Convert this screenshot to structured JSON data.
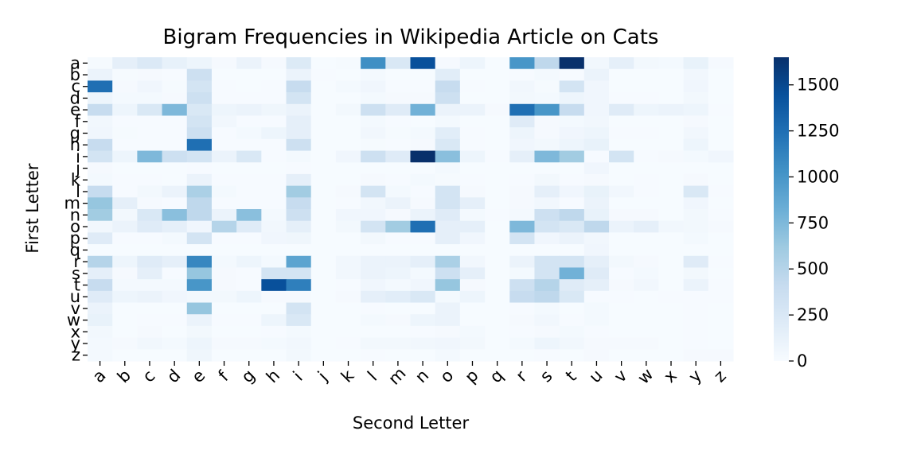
{
  "chart_data": {
    "type": "heatmap",
    "title": "Bigram Frequencies in Wikipedia Article on Cats",
    "xlabel": "Second Letter",
    "ylabel": "First Letter",
    "x_categories": [
      "a",
      "b",
      "c",
      "d",
      "e",
      "f",
      "g",
      "h",
      "i",
      "j",
      "k",
      "l",
      "m",
      "n",
      "o",
      "p",
      "q",
      "r",
      "s",
      "t",
      "u",
      "v",
      "w",
      "x",
      "y",
      "z"
    ],
    "y_categories": [
      "a",
      "b",
      "c",
      "d",
      "e",
      "f",
      "g",
      "h",
      "i",
      "j",
      "k",
      "l",
      "m",
      "n",
      "o",
      "p",
      "q",
      "r",
      "s",
      "t",
      "u",
      "v",
      "w",
      "x",
      "y",
      "z"
    ],
    "colormap": "Blues",
    "color_min": "#f7fbff",
    "color_max": "#08306b",
    "vmin": 0,
    "vmax": 1650,
    "colorbar_ticks": [
      "0",
      "250",
      "500",
      "750",
      "1000",
      "1250",
      "1500"
    ],
    "values": [
      [
        15,
        150,
        230,
        130,
        80,
        20,
        100,
        20,
        220,
        5,
        15,
        1050,
        250,
        1450,
        20,
        80,
        5,
        1000,
        450,
        1650,
        50,
        150,
        40,
        30,
        120,
        20
      ],
      [
        100,
        15,
        20,
        10,
        350,
        5,
        5,
        5,
        100,
        10,
        5,
        30,
        5,
        5,
        180,
        5,
        5,
        10,
        30,
        10,
        100,
        5,
        5,
        5,
        50,
        5
      ],
      [
        1250,
        20,
        60,
        15,
        300,
        10,
        5,
        10,
        400,
        5,
        30,
        60,
        10,
        10,
        400,
        10,
        5,
        50,
        15,
        300,
        60,
        5,
        5,
        5,
        60,
        5
      ],
      [
        80,
        30,
        30,
        20,
        350,
        10,
        10,
        10,
        300,
        5,
        5,
        30,
        20,
        20,
        350,
        5,
        5,
        40,
        30,
        80,
        60,
        10,
        10,
        5,
        40,
        5
      ],
      [
        400,
        80,
        250,
        750,
        250,
        80,
        100,
        70,
        100,
        5,
        40,
        350,
        200,
        800,
        100,
        100,
        20,
        1250,
        1000,
        400,
        60,
        200,
        80,
        100,
        80,
        10
      ],
      [
        50,
        10,
        10,
        10,
        300,
        50,
        10,
        10,
        150,
        5,
        5,
        30,
        10,
        5,
        30,
        5,
        5,
        200,
        20,
        30,
        50,
        5,
        5,
        5,
        20,
        5
      ],
      [
        60,
        15,
        10,
        10,
        350,
        10,
        30,
        80,
        150,
        5,
        5,
        50,
        15,
        30,
        180,
        10,
        5,
        80,
        20,
        60,
        80,
        10,
        10,
        5,
        50,
        5
      ],
      [
        400,
        10,
        10,
        10,
        1250,
        10,
        10,
        10,
        350,
        5,
        5,
        15,
        10,
        20,
        250,
        10,
        5,
        60,
        40,
        80,
        120,
        5,
        5,
        5,
        80,
        5
      ],
      [
        300,
        80,
        750,
        350,
        300,
        100,
        250,
        10,
        30,
        5,
        60,
        350,
        200,
        1650,
        700,
        80,
        10,
        150,
        750,
        600,
        10,
        300,
        10,
        20,
        30,
        60
      ],
      [
        20,
        5,
        5,
        5,
        10,
        5,
        5,
        5,
        10,
        5,
        5,
        5,
        5,
        5,
        30,
        5,
        5,
        5,
        5,
        5,
        60,
        5,
        5,
        5,
        5,
        5
      ],
      [
        30,
        10,
        10,
        5,
        100,
        10,
        10,
        10,
        150,
        5,
        5,
        20,
        10,
        30,
        15,
        10,
        5,
        10,
        40,
        10,
        20,
        5,
        10,
        5,
        20,
        5
      ],
      [
        400,
        10,
        40,
        100,
        550,
        30,
        10,
        10,
        600,
        5,
        20,
        300,
        30,
        10,
        300,
        20,
        5,
        20,
        150,
        60,
        120,
        50,
        10,
        5,
        250,
        10
      ],
      [
        650,
        150,
        20,
        10,
        450,
        10,
        10,
        10,
        400,
        5,
        10,
        50,
        100,
        20,
        300,
        150,
        5,
        20,
        50,
        10,
        100,
        5,
        5,
        5,
        60,
        5
      ],
      [
        600,
        40,
        250,
        700,
        450,
        100,
        700,
        30,
        350,
        5,
        60,
        60,
        20,
        100,
        200,
        30,
        10,
        30,
        350,
        450,
        120,
        20,
        20,
        5,
        40,
        10
      ],
      [
        50,
        100,
        200,
        150,
        60,
        500,
        200,
        50,
        150,
        5,
        40,
        300,
        600,
        1250,
        150,
        150,
        5,
        750,
        300,
        250,
        450,
        100,
        150,
        50,
        40,
        20
      ],
      [
        200,
        10,
        10,
        30,
        300,
        10,
        10,
        60,
        70,
        5,
        5,
        40,
        10,
        10,
        150,
        60,
        5,
        300,
        60,
        100,
        50,
        5,
        5,
        5,
        30,
        5
      ],
      [
        5,
        5,
        5,
        5,
        5,
        5,
        5,
        5,
        5,
        5,
        5,
        5,
        5,
        5,
        5,
        5,
        5,
        5,
        5,
        5,
        60,
        5,
        5,
        5,
        5,
        5
      ],
      [
        500,
        80,
        200,
        150,
        1100,
        30,
        80,
        30,
        900,
        5,
        50,
        100,
        100,
        150,
        550,
        50,
        5,
        100,
        300,
        300,
        150,
        40,
        20,
        5,
        200,
        10
      ],
      [
        150,
        20,
        150,
        10,
        650,
        20,
        10,
        300,
        300,
        5,
        50,
        100,
        80,
        30,
        350,
        150,
        5,
        30,
        300,
        800,
        200,
        10,
        30,
        5,
        40,
        5
      ],
      [
        400,
        30,
        30,
        30,
        1000,
        20,
        10,
        1450,
        1150,
        5,
        10,
        60,
        30,
        60,
        650,
        20,
        5,
        350,
        500,
        200,
        150,
        20,
        50,
        5,
        100,
        10
      ],
      [
        200,
        80,
        100,
        60,
        40,
        40,
        80,
        20,
        20,
        5,
        20,
        150,
        180,
        250,
        30,
        80,
        5,
        400,
        450,
        250,
        10,
        10,
        5,
        10,
        10,
        10
      ],
      [
        100,
        5,
        5,
        5,
        650,
        5,
        5,
        5,
        300,
        5,
        5,
        10,
        5,
        5,
        100,
        5,
        5,
        10,
        30,
        5,
        30,
        5,
        5,
        5,
        10,
        5
      ],
      [
        120,
        5,
        10,
        10,
        100,
        10,
        10,
        80,
        250,
        5,
        5,
        30,
        20,
        80,
        100,
        5,
        5,
        20,
        50,
        10,
        30,
        5,
        5,
        5,
        10,
        5
      ],
      [
        40,
        5,
        20,
        5,
        40,
        5,
        5,
        10,
        30,
        5,
        5,
        5,
        5,
        10,
        20,
        30,
        5,
        10,
        20,
        30,
        10,
        5,
        5,
        5,
        10,
        5
      ],
      [
        30,
        20,
        50,
        30,
        80,
        20,
        20,
        30,
        50,
        5,
        10,
        40,
        40,
        50,
        60,
        40,
        5,
        30,
        80,
        50,
        20,
        20,
        20,
        5,
        10,
        5
      ],
      [
        30,
        5,
        5,
        5,
        70,
        5,
        5,
        5,
        40,
        5,
        5,
        10,
        5,
        5,
        30,
        5,
        5,
        5,
        10,
        5,
        20,
        5,
        5,
        5,
        20,
        20
      ]
    ]
  }
}
